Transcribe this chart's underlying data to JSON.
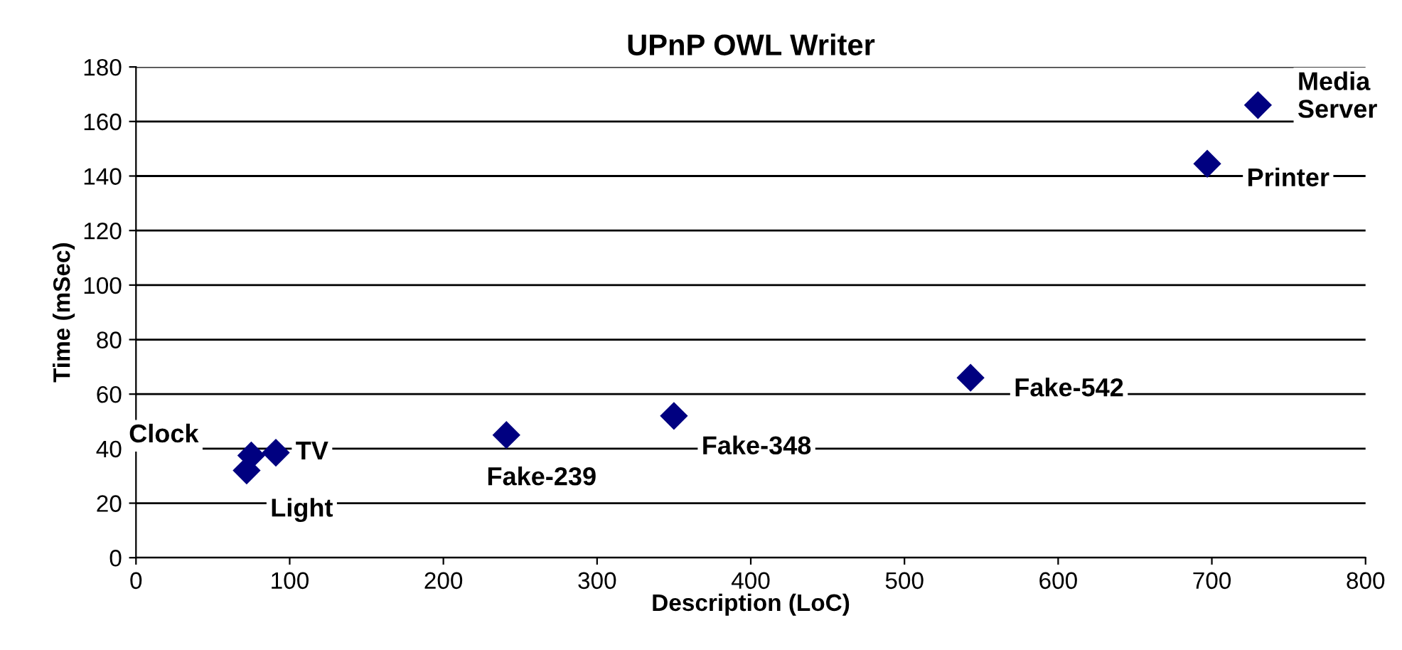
{
  "chart_data": {
    "type": "scatter",
    "title": "UPnP OWL Writer",
    "xlabel": "Description (LoC)",
    "ylabel": "Time (mSec)",
    "series": [
      {
        "color": "#000080",
        "x": [
          75,
          72,
          91,
          241,
          350,
          543,
          697,
          730
        ],
        "values": [
          37.5,
          32,
          38.5,
          45,
          52,
          66,
          144.5,
          166
        ]
      }
    ],
    "annotations": [
      {
        "text": "Clock",
        "x": 75,
        "y": 37.5
      },
      {
        "text": "Light",
        "x": 72,
        "y": 32
      },
      {
        "text": "TV",
        "x": 91,
        "y": 38.5
      },
      {
        "text": "Fake-239",
        "x": 241,
        "y": 45
      },
      {
        "text": "Fake-348",
        "x": 350,
        "y": 52
      },
      {
        "text": "Fake-542",
        "x": 543,
        "y": 66
      },
      {
        "text": "Printer",
        "x": 697,
        "y": 144.5
      },
      {
        "text": "Media\nServer",
        "x": 730,
        "y": 166
      }
    ],
    "xlim": [
      0,
      800
    ],
    "xticks": [
      0,
      100,
      200,
      300,
      400,
      500,
      600,
      700,
      800
    ],
    "ylim": [
      0,
      180
    ],
    "yticks": [
      0,
      20,
      40,
      60,
      80,
      100,
      120,
      140,
      160,
      180
    ],
    "grid": "y",
    "marker": "diamond",
    "legend": false
  }
}
